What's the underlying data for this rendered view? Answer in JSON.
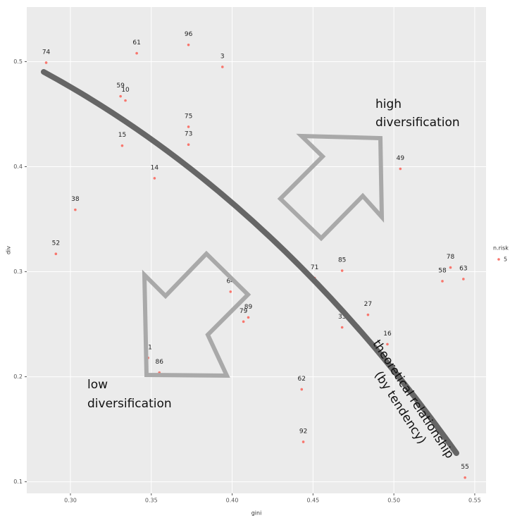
{
  "chart_data": {
    "type": "scatter",
    "x_label": "gini",
    "y_label": "div",
    "legend_title": "n.risk",
    "series": [
      {
        "name": "5",
        "color": "#f8766d",
        "point_labels": [
          "74",
          "61",
          "96",
          "3",
          "59",
          "10",
          "15",
          "75",
          "73",
          "14",
          "38",
          "52",
          "49",
          "85",
          "71",
          "78",
          "58",
          "63",
          "64",
          "79",
          "89",
          "33",
          "27",
          "16",
          "21",
          "86",
          "62",
          "92",
          "55"
        ],
        "x": [
          0.285,
          0.341,
          0.373,
          0.394,
          0.331,
          0.334,
          0.332,
          0.373,
          0.373,
          0.352,
          0.303,
          0.291,
          0.504,
          0.468,
          0.451,
          0.535,
          0.53,
          0.543,
          0.399,
          0.407,
          0.41,
          0.468,
          0.484,
          0.496,
          0.348,
          0.355,
          0.443,
          0.444,
          0.544
        ],
        "values": [
          0.499,
          0.508,
          0.516,
          0.495,
          0.467,
          0.463,
          0.42,
          0.438,
          0.421,
          0.389,
          0.359,
          0.317,
          0.398,
          0.301,
          0.294,
          0.304,
          0.291,
          0.293,
          0.281,
          0.2525,
          0.2565,
          0.247,
          0.259,
          0.231,
          0.218,
          0.204,
          0.188,
          0.138,
          0.104
        ]
      }
    ],
    "xlim": [
      0.273,
      0.557
    ],
    "ylim": [
      0.089,
      0.552
    ],
    "xticks": [
      {
        "value": 0.3,
        "label": "0.30"
      },
      0.35,
      {
        "value": 0.4,
        "label": "0.40"
      },
      0.45,
      {
        "value": 0.5,
        "label": "0.50"
      },
      0.55
    ],
    "yticks": [
      0.1,
      0.2,
      0.3,
      0.4,
      0.5
    ],
    "grid": true,
    "legend_position": "right",
    "annotations": {
      "high": [
        "high",
        "diversification"
      ],
      "low": [
        "low",
        "diversification"
      ],
      "relationship": [
        "theoretical relationship",
        "(by tendency)"
      ]
    }
  }
}
